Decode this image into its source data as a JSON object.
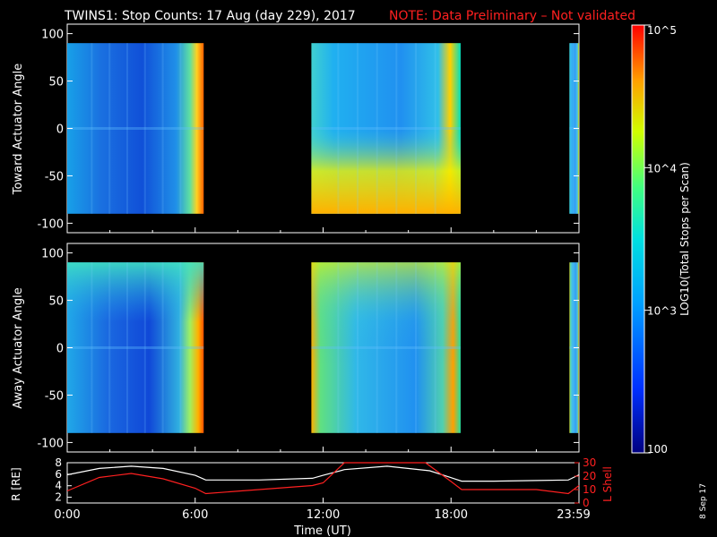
{
  "header": {
    "title": "TWINS1: Stop Counts: 17 Aug (day 229), 2017",
    "note": "NOTE: Data Preliminary – Not validated"
  },
  "side_stamp": "8 Sep 17",
  "colors": {
    "accent_note": "#ff2020",
    "axis": "#ffffff",
    "background": "#000000"
  },
  "chart_data": [
    {
      "type": "heatmap",
      "panel": "toward",
      "ylabel": "Toward Actuator Angle",
      "yticks": [
        "100",
        "50",
        "0",
        "-50",
        "-100"
      ],
      "ylim": [
        -110,
        110
      ],
      "xlim": [
        0,
        24
      ],
      "data_range": [
        -90,
        90
      ],
      "segments": [
        {
          "start": 0.0,
          "end": 6.4
        },
        {
          "start": 11.45,
          "end": 18.45
        },
        {
          "start": 23.55,
          "end": 24.0
        }
      ]
    },
    {
      "type": "heatmap",
      "panel": "away",
      "ylabel": "Away Actuator Angle",
      "yticks": [
        "100",
        "50",
        "0",
        "-50",
        "-100"
      ],
      "ylim": [
        -110,
        110
      ],
      "xlim": [
        0,
        24
      ],
      "data_range": [
        -90,
        90
      ],
      "segments": [
        {
          "start": 0.0,
          "end": 6.4
        },
        {
          "start": 11.45,
          "end": 18.45
        },
        {
          "start": 23.55,
          "end": 24.0
        }
      ]
    },
    {
      "type": "line",
      "panel": "orbit",
      "ylabel_left": "R [RE]",
      "ylabel_right": "L Shell",
      "yticks_left": [
        "8",
        "6",
        "4",
        "2"
      ],
      "yticks_right": [
        "30",
        "20",
        "10",
        "0"
      ],
      "ylim_left": [
        1,
        8
      ],
      "ylim_right": [
        0,
        30
      ],
      "xlabel": "Time (UT)",
      "xticks": [
        "0:00",
        "6:00",
        "12:00",
        "18:00",
        "23:59"
      ],
      "xlim": [
        0,
        24
      ],
      "series": [
        {
          "axis": "left",
          "color": "#ffffff",
          "x": [
            0,
            1.5,
            3,
            4.5,
            6,
            6.5,
            9,
            11.5,
            12,
            13,
            15,
            17,
            18,
            18.5,
            20,
            22,
            23.5,
            24
          ],
          "y": [
            5.9,
            7.0,
            7.4,
            7.0,
            5.8,
            5.0,
            5.0,
            5.3,
            5.8,
            6.8,
            7.4,
            6.6,
            5.4,
            4.8,
            4.8,
            4.9,
            5.0,
            5.9
          ]
        },
        {
          "axis": "right",
          "color": "#ff2020",
          "x": [
            0,
            1.5,
            3,
            4.5,
            6,
            6.5,
            9,
            11.5,
            12,
            13,
            16.8,
            18,
            18.5,
            20,
            22,
            23.5,
            24
          ],
          "y": [
            9,
            19,
            22,
            18,
            11,
            7,
            10,
            13,
            15,
            30,
            30,
            16,
            10,
            10,
            10,
            7,
            13
          ]
        }
      ]
    }
  ],
  "colorbar": {
    "label": "LOG10(Total Stops per Scan)",
    "ticks": [
      "10^5",
      "10^4",
      "10^3",
      "100"
    ],
    "range_log": [
      2,
      5
    ]
  }
}
